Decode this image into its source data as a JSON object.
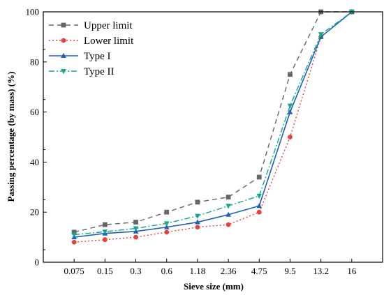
{
  "chart_data": {
    "type": "line",
    "title": "",
    "xlabel": "Sieve size (mm)",
    "ylabel": "Passing percentage (by mass) (%)",
    "categories": [
      "0.075",
      "0.15",
      "0.3",
      "0.6",
      "1.18",
      "2.36",
      "4.75",
      "9.5",
      "13.2",
      "16"
    ],
    "ylim": [
      0,
      100
    ],
    "yticks": [
      0,
      20,
      40,
      60,
      80,
      100
    ],
    "grid": false,
    "legend_position": "top-left",
    "series": [
      {
        "name": "Upper limit",
        "values": [
          12,
          15,
          16,
          20,
          24,
          26,
          34,
          75,
          100,
          100
        ],
        "color": "#666666",
        "dash": "dashed",
        "marker": "square"
      },
      {
        "name": "Lower limit",
        "values": [
          8,
          9,
          10,
          12,
          14,
          15,
          20,
          50,
          90,
          100
        ],
        "color": "#e8413c",
        "dash": "dotted",
        "marker": "circle"
      },
      {
        "name": "Type I",
        "values": [
          10,
          11.5,
          12.3,
          14,
          16,
          19,
          22.5,
          60,
          90,
          100
        ],
        "color": "#1f5fbf",
        "dash": "solid",
        "marker": "triangle-up"
      },
      {
        "name": "Type II",
        "values": [
          11,
          12.2,
          13.5,
          15.5,
          18.5,
          22.5,
          26.5,
          62.5,
          91,
          100
        ],
        "color": "#13a88a",
        "dash": "dashdot",
        "marker": "triangle-down"
      }
    ]
  }
}
